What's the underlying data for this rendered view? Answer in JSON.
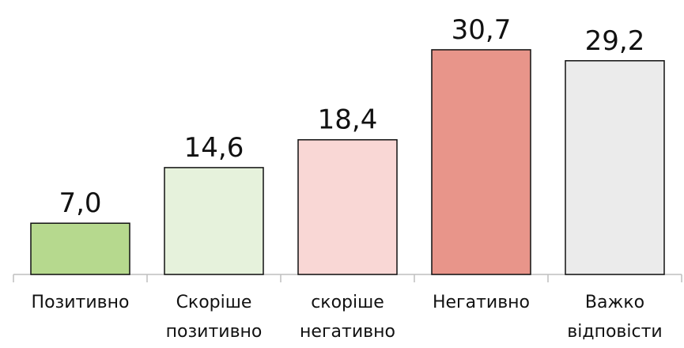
{
  "chart_data": {
    "type": "bar",
    "categories": [
      "Позитивно",
      "Скоріше позитивно",
      "скоріше негативно",
      "Негативно",
      "Важко відповісти"
    ],
    "values": [
      7.0,
      14.6,
      18.4,
      30.7,
      29.2
    ],
    "value_labels": [
      "7,0",
      "14,6",
      "18,4",
      "30,7",
      "29,2"
    ],
    "colors": [
      "#b6d98e",
      "#e6f2dc",
      "#f9d7d5",
      "#e8958a",
      "#ebebeb"
    ],
    "ylim": [
      0,
      37.5
    ]
  }
}
